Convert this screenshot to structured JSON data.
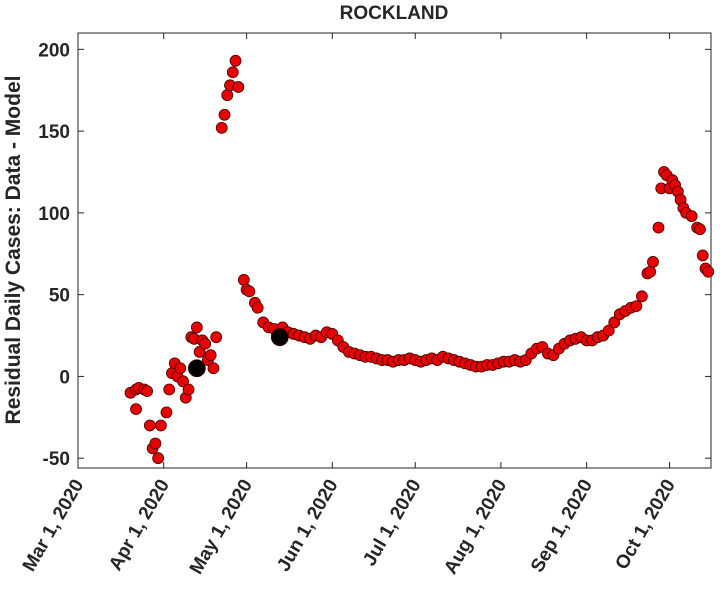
{
  "chart_data": {
    "type": "scatter",
    "title": "ROCKLAND",
    "ylabel": "Residual Daily Cases: Data - Model",
    "xlim": [
      "2020-03-01",
      "2020-10-16"
    ],
    "ylim": [
      -56,
      210
    ],
    "xticks": [
      {
        "value": "2020-03-01",
        "label": "Mar 1, 2020"
      },
      {
        "value": "2020-04-01",
        "label": "Apr 1, 2020"
      },
      {
        "value": "2020-05-01",
        "label": "May 1, 2020"
      },
      {
        "value": "2020-06-01",
        "label": "Jun 1, 2020"
      },
      {
        "value": "2020-07-01",
        "label": "Jul 1, 2020"
      },
      {
        "value": "2020-08-01",
        "label": "Aug 1, 2020"
      },
      {
        "value": "2020-09-01",
        "label": "Sep 1, 2020"
      },
      {
        "value": "2020-10-01",
        "label": "Oct 1, 2020"
      }
    ],
    "yticks": [
      -50,
      0,
      50,
      100,
      150,
      200
    ],
    "series": [
      {
        "color": "#e60000",
        "x": [
          "2020-03-20",
          "2020-03-22",
          "2020-03-22",
          "2020-03-23",
          "2020-03-25",
          "2020-03-26",
          "2020-03-27",
          "2020-03-28",
          "2020-03-29",
          "2020-03-30",
          "2020-03-31",
          "2020-04-02",
          "2020-04-03",
          "2020-04-04",
          "2020-04-05",
          "2020-04-06",
          "2020-04-07",
          "2020-04-08",
          "2020-04-09",
          "2020-04-10",
          "2020-04-11",
          "2020-04-12",
          "2020-04-13",
          "2020-04-14",
          "2020-04-15",
          "2020-04-16",
          "2020-04-17",
          "2020-04-18",
          "2020-04-19",
          "2020-04-20",
          "2020-04-22",
          "2020-04-23",
          "2020-04-24",
          "2020-04-25",
          "2020-04-26",
          "2020-04-27",
          "2020-04-28",
          "2020-04-30",
          "2020-05-01",
          "2020-05-02",
          "2020-05-04",
          "2020-05-05",
          "2020-05-07",
          "2020-05-09",
          "2020-05-11",
          "2020-05-14",
          "2020-05-16",
          "2020-05-18",
          "2020-05-20",
          "2020-05-22",
          "2020-05-24",
          "2020-05-26",
          "2020-05-28",
          "2020-05-30",
          "2020-06-01",
          "2020-06-03",
          "2020-06-05",
          "2020-06-07",
          "2020-06-09",
          "2020-06-11",
          "2020-06-13",
          "2020-06-15",
          "2020-06-17",
          "2020-06-19",
          "2020-06-21",
          "2020-06-23",
          "2020-06-25",
          "2020-06-27",
          "2020-06-29",
          "2020-07-01",
          "2020-07-03",
          "2020-07-05",
          "2020-07-07",
          "2020-07-09",
          "2020-07-11",
          "2020-07-13",
          "2020-07-15",
          "2020-07-17",
          "2020-07-19",
          "2020-07-21",
          "2020-07-23",
          "2020-07-25",
          "2020-07-27",
          "2020-07-29",
          "2020-07-31",
          "2020-08-02",
          "2020-08-04",
          "2020-08-06",
          "2020-08-08",
          "2020-08-10",
          "2020-08-12",
          "2020-08-14",
          "2020-08-16",
          "2020-08-18",
          "2020-08-20",
          "2020-08-22",
          "2020-08-24",
          "2020-08-26",
          "2020-08-28",
          "2020-08-30",
          "2020-09-01",
          "2020-09-03",
          "2020-09-05",
          "2020-09-07",
          "2020-09-09",
          "2020-09-11",
          "2020-09-13",
          "2020-09-15",
          "2020-09-17",
          "2020-09-19",
          "2020-09-21",
          "2020-09-23",
          "2020-09-24",
          "2020-09-25",
          "2020-09-27",
          "2020-09-28",
          "2020-09-29",
          "2020-09-30",
          "2020-10-01",
          "2020-10-02",
          "2020-10-03",
          "2020-10-04",
          "2020-10-05",
          "2020-10-06",
          "2020-10-07",
          "2020-10-09",
          "2020-10-11",
          "2020-10-12",
          "2020-10-13",
          "2020-10-14",
          "2020-10-15"
        ],
        "values": [
          -10,
          -20,
          -8,
          -7,
          -8,
          -9,
          -30,
          -44,
          -41,
          -50,
          -30,
          -22,
          -8,
          2,
          8,
          0,
          5,
          -3,
          -13,
          -8,
          24,
          23,
          30,
          15,
          22,
          20,
          10,
          13,
          5,
          24,
          152,
          160,
          172,
          178,
          186,
          193,
          177,
          59,
          53,
          52,
          45,
          42,
          33,
          30,
          29,
          30,
          27,
          26,
          25,
          24,
          23,
          25,
          24,
          27,
          26,
          22,
          18,
          15,
          14,
          13,
          12,
          12,
          11,
          10,
          10,
          9,
          10,
          10,
          11,
          10,
          9,
          10,
          11,
          10,
          12,
          11,
          10,
          9,
          8,
          7,
          6,
          6,
          7,
          7,
          8,
          9,
          9,
          10,
          9,
          10,
          14,
          17,
          18,
          14,
          13,
          17,
          20,
          22,
          23,
          24,
          22,
          22,
          24,
          25,
          28,
          33,
          38,
          40,
          42,
          43,
          49,
          63,
          64,
          70,
          91,
          115,
          125,
          123,
          115,
          120,
          117,
          113,
          108,
          103,
          100,
          98,
          91,
          90,
          74,
          66,
          64
        ]
      },
      {
        "color": "#000000",
        "x": [
          "2020-04-13",
          "2020-05-13"
        ],
        "values": [
          5,
          24
        ]
      }
    ]
  }
}
